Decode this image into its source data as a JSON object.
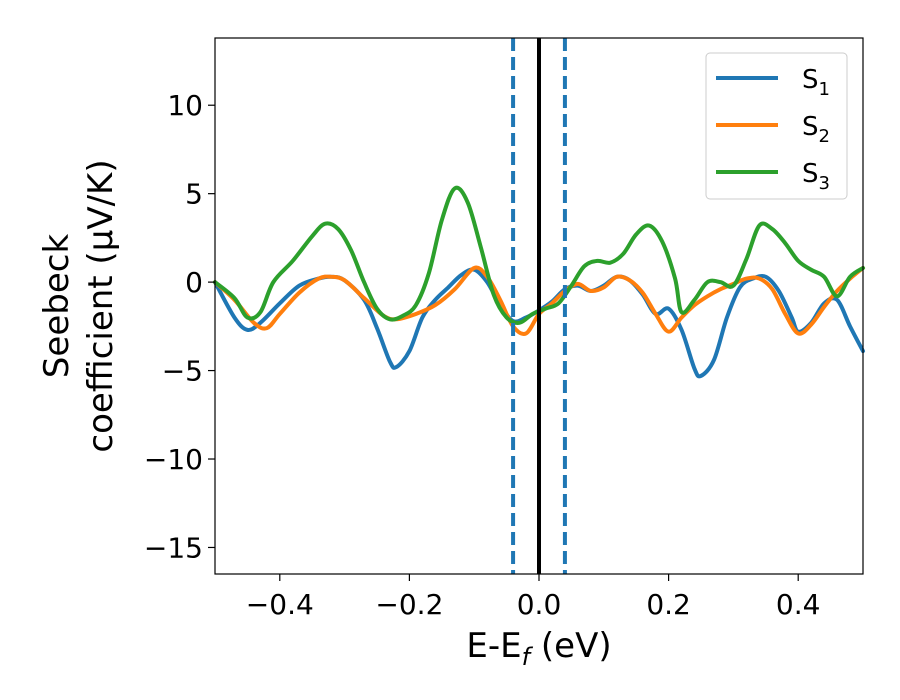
{
  "chart_data": {
    "type": "line",
    "xlabel": "E-E",
    "xlabel_sub": "f",
    "xlabel_unit": " (eV)",
    "ylabel_line1": "Seebeck",
    "ylabel_line2": "coefficient  (μV/K)",
    "xlim": [
      -0.5,
      0.5
    ],
    "ylim": [
      -16.5,
      13.8
    ],
    "xticks": [
      -0.4,
      -0.2,
      0.0,
      0.2,
      0.4
    ],
    "xtick_labels": [
      "−0.4",
      "−0.2",
      "0.0",
      "0.2",
      "0.4"
    ],
    "yticks": [
      -15,
      -10,
      -5,
      0,
      5,
      10
    ],
    "ytick_labels": [
      "−15",
      "−10",
      "−5",
      "0",
      "5",
      "10"
    ],
    "legend_position": "top-right",
    "vlines": [
      {
        "x": -0.04,
        "style": "dashed",
        "color": "#1f77b4"
      },
      {
        "x": 0.0,
        "style": "solid",
        "color": "#000000"
      },
      {
        "x": 0.04,
        "style": "dashed",
        "color": "#1f77b4"
      }
    ],
    "series": [
      {
        "name": "S",
        "sub": "1",
        "color": "#1f77b4",
        "points": [
          [
            -0.5,
            0
          ],
          [
            -0.47,
            -2.0
          ],
          [
            -0.45,
            -2.7
          ],
          [
            -0.43,
            -2.3
          ],
          [
            -0.4,
            -1.2
          ],
          [
            -0.37,
            -0.2
          ],
          [
            -0.34,
            0.2
          ],
          [
            -0.32,
            0.3
          ],
          [
            -0.3,
            0.1
          ],
          [
            -0.27,
            -1.0
          ],
          [
            -0.25,
            -2.6
          ],
          [
            -0.23,
            -4.5
          ],
          [
            -0.22,
            -4.8
          ],
          [
            -0.2,
            -3.9
          ],
          [
            -0.18,
            -2.0
          ],
          [
            -0.16,
            -1.0
          ],
          [
            -0.14,
            -0.3
          ],
          [
            -0.12,
            0.4
          ],
          [
            -0.1,
            0.7
          ],
          [
            -0.08,
            0
          ],
          [
            -0.06,
            -1.3
          ],
          [
            -0.04,
            -2.2
          ],
          [
            -0.02,
            -2.0
          ],
          [
            0.0,
            -1.6
          ],
          [
            0.02,
            -1.1
          ],
          [
            0.04,
            -0.4
          ],
          [
            0.06,
            -0.2
          ],
          [
            0.08,
            -0.5
          ],
          [
            0.1,
            -0.2
          ],
          [
            0.12,
            0.3
          ],
          [
            0.14,
            0.1
          ],
          [
            0.16,
            -0.7
          ],
          [
            0.18,
            -1.8
          ],
          [
            0.2,
            -1.5
          ],
          [
            0.22,
            -2.7
          ],
          [
            0.24,
            -4.9
          ],
          [
            0.25,
            -5.3
          ],
          [
            0.27,
            -4.4
          ],
          [
            0.29,
            -2.0
          ],
          [
            0.31,
            -0.3
          ],
          [
            0.33,
            0.2
          ],
          [
            0.35,
            0.3
          ],
          [
            0.37,
            -0.5
          ],
          [
            0.39,
            -2.0
          ],
          [
            0.4,
            -2.8
          ],
          [
            0.42,
            -2.3
          ],
          [
            0.44,
            -1.2
          ],
          [
            0.46,
            -1.0
          ],
          [
            0.48,
            -2.5
          ],
          [
            0.5,
            -3.9
          ]
        ]
      },
      {
        "name": "S",
        "sub": "2",
        "color": "#ff7f0e",
        "points": [
          [
            -0.5,
            0
          ],
          [
            -0.47,
            -1.0
          ],
          [
            -0.44,
            -2.3
          ],
          [
            -0.42,
            -2.6
          ],
          [
            -0.4,
            -1.8
          ],
          [
            -0.37,
            -0.6
          ],
          [
            -0.34,
            0.2
          ],
          [
            -0.32,
            0.3
          ],
          [
            -0.3,
            0.1
          ],
          [
            -0.27,
            -0.9
          ],
          [
            -0.24,
            -1.9
          ],
          [
            -0.22,
            -2.1
          ],
          [
            -0.19,
            -1.8
          ],
          [
            -0.16,
            -1.3
          ],
          [
            -0.13,
            -0.4
          ],
          [
            -0.1,
            0.8
          ],
          [
            -0.08,
            0.3
          ],
          [
            -0.06,
            -1.0
          ],
          [
            -0.04,
            -2.5
          ],
          [
            -0.02,
            -2.9
          ],
          [
            0.0,
            -1.8
          ],
          [
            0.02,
            -1.2
          ],
          [
            0.04,
            -0.5
          ],
          [
            0.06,
            -0.1
          ],
          [
            0.08,
            -0.5
          ],
          [
            0.1,
            -0.3
          ],
          [
            0.12,
            0.3
          ],
          [
            0.14,
            0.1
          ],
          [
            0.16,
            -0.6
          ],
          [
            0.18,
            -1.8
          ],
          [
            0.2,
            -2.8
          ],
          [
            0.22,
            -2.0
          ],
          [
            0.24,
            -1.3
          ],
          [
            0.26,
            -0.8
          ],
          [
            0.28,
            -0.4
          ],
          [
            0.3,
            -0.1
          ],
          [
            0.32,
            0.2
          ],
          [
            0.34,
            0.2
          ],
          [
            0.36,
            -0.4
          ],
          [
            0.38,
            -1.8
          ],
          [
            0.4,
            -2.9
          ],
          [
            0.42,
            -2.4
          ],
          [
            0.44,
            -1.4
          ],
          [
            0.46,
            -0.5
          ],
          [
            0.48,
            0.2
          ],
          [
            0.5,
            0.8
          ]
        ]
      },
      {
        "name": "S",
        "sub": "3",
        "color": "#2ca02c",
        "points": [
          [
            -0.5,
            0
          ],
          [
            -0.47,
            -0.9
          ],
          [
            -0.45,
            -2.0
          ],
          [
            -0.43,
            -1.7
          ],
          [
            -0.41,
            0.0
          ],
          [
            -0.38,
            1.2
          ],
          [
            -0.35,
            2.6
          ],
          [
            -0.33,
            3.3
          ],
          [
            -0.31,
            3.0
          ],
          [
            -0.29,
            1.8
          ],
          [
            -0.27,
            0.0
          ],
          [
            -0.25,
            -1.5
          ],
          [
            -0.23,
            -2.1
          ],
          [
            -0.21,
            -1.9
          ],
          [
            -0.19,
            -1.3
          ],
          [
            -0.17,
            0.5
          ],
          [
            -0.15,
            3.5
          ],
          [
            -0.13,
            5.3
          ],
          [
            -0.11,
            4.5
          ],
          [
            -0.09,
            2.0
          ],
          [
            -0.07,
            -0.7
          ],
          [
            -0.05,
            -2.0
          ],
          [
            -0.03,
            -2.3
          ],
          [
            -0.01,
            -1.8
          ],
          [
            0.01,
            -1.5
          ],
          [
            0.03,
            -1.2
          ],
          [
            0.05,
            -0.2
          ],
          [
            0.07,
            0.9
          ],
          [
            0.09,
            1.2
          ],
          [
            0.11,
            1.1
          ],
          [
            0.13,
            1.6
          ],
          [
            0.15,
            2.7
          ],
          [
            0.17,
            3.2
          ],
          [
            0.19,
            2.3
          ],
          [
            0.21,
            0.2
          ],
          [
            0.22,
            -1.7
          ],
          [
            0.24,
            -1.0
          ],
          [
            0.26,
            0.0
          ],
          [
            0.28,
            0.0
          ],
          [
            0.3,
            -0.2
          ],
          [
            0.32,
            1.3
          ],
          [
            0.34,
            3.2
          ],
          [
            0.36,
            3.0
          ],
          [
            0.38,
            2.2
          ],
          [
            0.4,
            1.2
          ],
          [
            0.42,
            0.7
          ],
          [
            0.44,
            0.3
          ],
          [
            0.46,
            -0.8
          ],
          [
            0.48,
            0.3
          ],
          [
            0.5,
            0.8
          ]
        ]
      }
    ]
  }
}
